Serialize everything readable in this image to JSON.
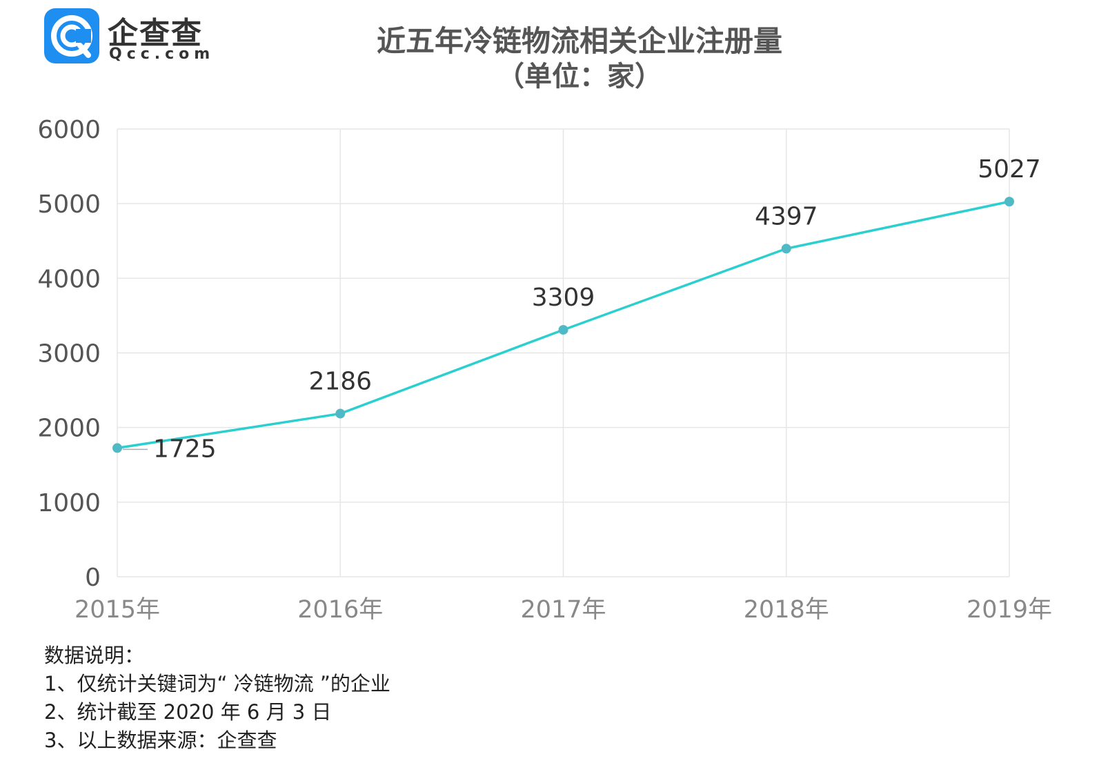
{
  "logo": {
    "cn": "企查查",
    "en": "Qcc.com"
  },
  "title": {
    "line1": "近五年冷链物流相关企业注册量",
    "line2": "（单位：家）"
  },
  "chart_data": {
    "type": "line",
    "categories": [
      "2015年",
      "2016年",
      "2017年",
      "2018年",
      "2019年"
    ],
    "series": [
      {
        "values": [
          1725,
          2186,
          3309,
          4397,
          5027
        ]
      }
    ],
    "y_ticks": [
      0,
      1000,
      2000,
      3000,
      4000,
      5000,
      6000
    ],
    "ylim": [
      0,
      6000
    ],
    "grid": true,
    "line_color": "#2bcfcf",
    "marker_color": "#4fb9c6"
  },
  "notes": {
    "heading": "数据说明：",
    "items": [
      "1、仅统计关键词为“ 冷链物流 ”的企业",
      "2、统计截至 2020 年 6 月 3 日",
      "3、以上数据来源：企查查"
    ]
  }
}
